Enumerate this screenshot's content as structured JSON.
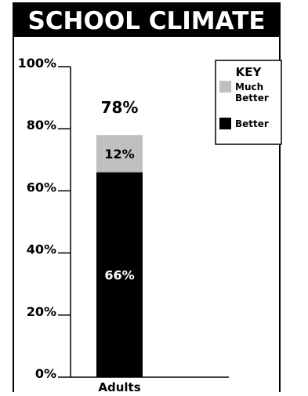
{
  "chart_data": {
    "type": "bar",
    "stacked": true,
    "title": "SCHOOL CLIMATE",
    "categories": [
      "Adults"
    ],
    "series": [
      {
        "name": "Better",
        "values": [
          66
        ],
        "color": "#000000",
        "value_labels": [
          "66%"
        ]
      },
      {
        "name": "Much Better",
        "values": [
          12
        ],
        "color": "#c0c0c0",
        "value_labels": [
          "12%"
        ]
      }
    ],
    "totals": [
      78
    ],
    "total_labels": [
      "78%"
    ],
    "ylim": [
      0,
      100
    ],
    "yticks": [
      0,
      20,
      40,
      60,
      80,
      100
    ],
    "ytick_labels": [
      "0%",
      "20%",
      "40%",
      "60%",
      "80%",
      "100%"
    ],
    "xlabel": "",
    "ylabel": "",
    "grid": false,
    "legend": {
      "title": "KEY",
      "placement": "top-right",
      "entries": [
        {
          "line1": "Much",
          "line2": "Better",
          "color": "#c0c0c0"
        },
        {
          "line1": "Better",
          "line2": "",
          "color": "#000000"
        }
      ]
    },
    "colors": {
      "title_bg": "#000000",
      "title_text": "#ffffff",
      "frame": "#000000"
    }
  }
}
